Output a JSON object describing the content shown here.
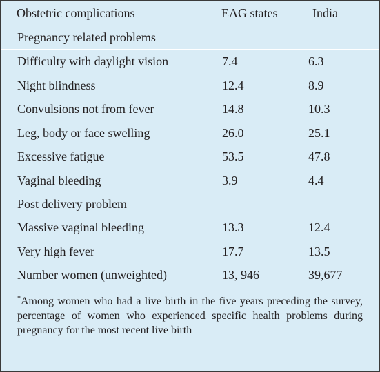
{
  "table": {
    "headers": [
      "Obstetric complications",
      "EAG states",
      "India"
    ],
    "sections": [
      {
        "title": "Pregnancy related problems",
        "rows": [
          [
            "Difficulty with daylight vision",
            "7.4",
            "6.3"
          ],
          [
            "Night blindness",
            "12.4",
            "8.9"
          ],
          [
            "Convulsions not from fever",
            "14.8",
            "10.3"
          ],
          [
            "Leg, body or face swelling",
            "26.0",
            "25.1"
          ],
          [
            "Excessive fatigue",
            "53.5",
            "47.8"
          ],
          [
            "Vaginal bleeding",
            "3.9",
            "4.4"
          ]
        ]
      },
      {
        "title": "Post delivery problem",
        "rows": [
          [
            "Massive vaginal bleeding",
            "13.3",
            "12.4"
          ],
          [
            "Very high fever",
            "17.7",
            "13.5"
          ],
          [
            "Number women (unweighted)",
            "13, 946",
            "39,677"
          ]
        ]
      }
    ],
    "footnote_marker": "*",
    "footnote": "Among women who had a live birth in the five years preceding the survey, percentage of women who experienced specific health problems during pregnancy for the most recent live birth"
  }
}
